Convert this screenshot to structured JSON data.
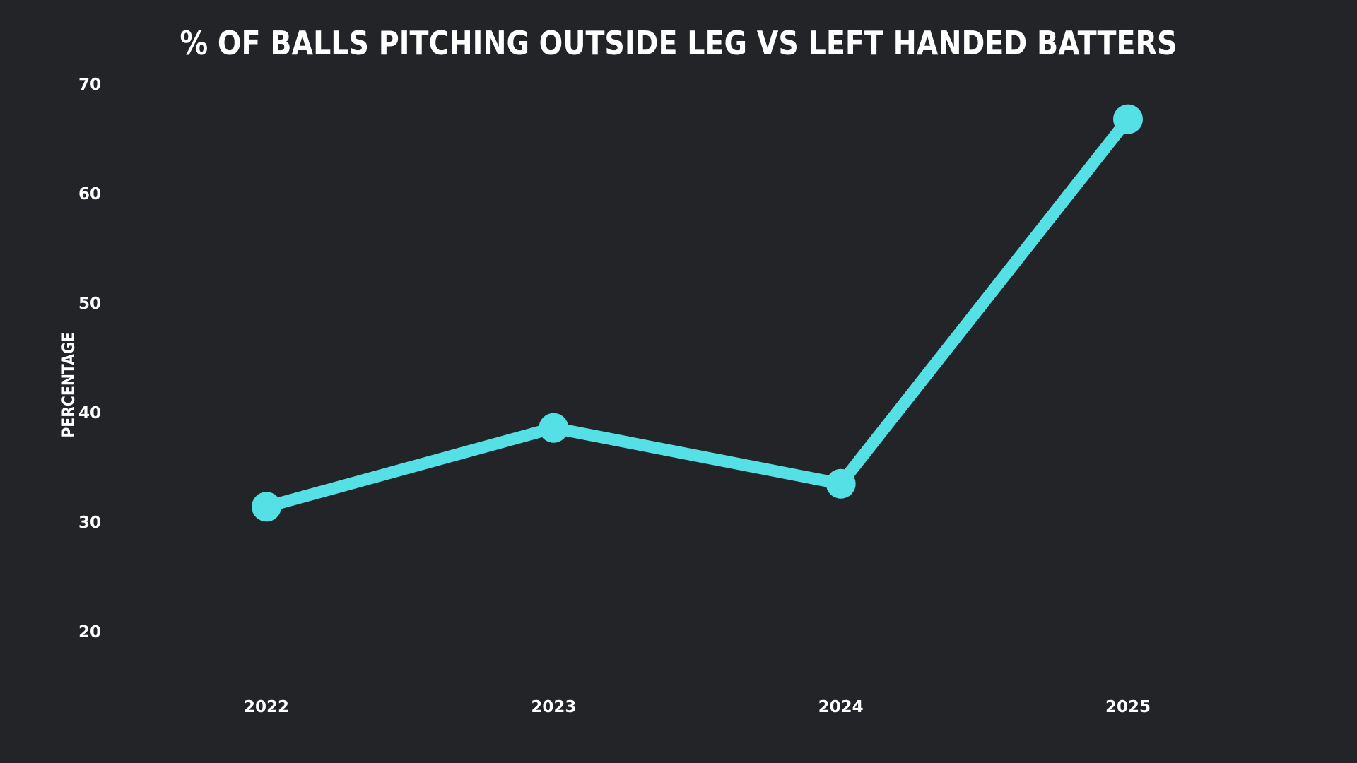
{
  "chart_data": {
    "type": "line",
    "title": "% OF BALLS PITCHING OUTSIDE LEG VS LEFT HANDED BATTERS",
    "xlabel": "",
    "ylabel": "PERCENTAGE",
    "categories": [
      "2022",
      "2023",
      "2024",
      "2025"
    ],
    "series": [
      {
        "values": [
          31.4,
          38.6,
          33.5,
          66.8
        ]
      }
    ],
    "ylim": [
      20,
      70
    ],
    "yticks": [
      "70",
      "60",
      "50",
      "40",
      "30",
      "20"
    ],
    "grid": false,
    "legend": "none",
    "colors": {
      "background": "#222428",
      "line": "#55E0E5",
      "text": "#FFFFFF"
    }
  }
}
